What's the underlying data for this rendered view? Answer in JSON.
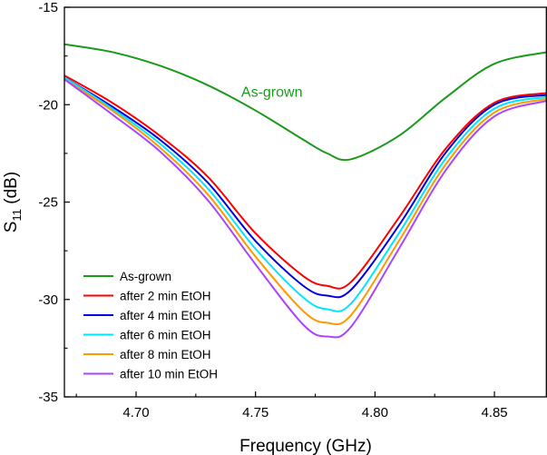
{
  "chart_data": {
    "type": "line",
    "title": "",
    "xlabel": "Frequency (GHz)",
    "ylabel_main": "S",
    "ylabel_sub": "11",
    "ylabel_unit": " (dB)",
    "xlim": [
      4.67,
      4.872
    ],
    "ylim": [
      -35,
      -15
    ],
    "xticks": [
      4.7,
      4.75,
      4.8,
      4.85
    ],
    "xtick_labels": [
      "4.70",
      "4.75",
      "4.80",
      "4.85"
    ],
    "yticks": [
      -35,
      -30,
      -25,
      -20,
      -15
    ],
    "ytick_labels": [
      "-35",
      "-30",
      "-25",
      "-20",
      "-15"
    ],
    "legend_position": "bottom-left",
    "annotation": {
      "text": "As-grown",
      "x": 4.744,
      "y": -19.6,
      "color": "#1a9a1a"
    },
    "x": [
      4.67,
      4.69,
      4.71,
      4.73,
      4.75,
      4.77,
      4.78,
      4.79,
      4.81,
      4.83,
      4.85,
      4.872
    ],
    "series": [
      {
        "name": "As-grown",
        "color": "#1a9a1a",
        "values": [
          -16.9,
          -17.3,
          -18.0,
          -19.0,
          -20.3,
          -21.8,
          -22.5,
          -22.8,
          -21.6,
          -19.6,
          -17.9,
          -17.3
        ]
      },
      {
        "name": "after 2 min EtOH",
        "color": "#ff0000",
        "values": [
          -18.5,
          -19.9,
          -21.6,
          -23.7,
          -26.6,
          -28.8,
          -29.3,
          -29.1,
          -25.8,
          -22.2,
          -19.9,
          -19.4
        ]
      },
      {
        "name": "after 4 min EtOH",
        "color": "#0000e0",
        "values": [
          -18.6,
          -20.1,
          -21.8,
          -24.0,
          -27.0,
          -29.3,
          -29.8,
          -29.5,
          -26.2,
          -22.4,
          -20.0,
          -19.5
        ]
      },
      {
        "name": "after 6 min EtOH",
        "color": "#00e6ff",
        "values": [
          -18.6,
          -20.2,
          -22.0,
          -24.3,
          -27.4,
          -29.9,
          -30.5,
          -30.2,
          -26.6,
          -22.7,
          -20.2,
          -19.6
        ]
      },
      {
        "name": "after 8 min EtOH",
        "color": "#ff9900",
        "values": [
          -18.7,
          -20.3,
          -22.2,
          -24.6,
          -27.8,
          -30.6,
          -31.2,
          -30.8,
          -27.0,
          -23.0,
          -20.4,
          -19.7
        ]
      },
      {
        "name": "after 10 min EtOH",
        "color": "#aa44ff",
        "values": [
          -18.7,
          -20.5,
          -22.4,
          -24.9,
          -28.2,
          -31.3,
          -31.9,
          -31.4,
          -27.4,
          -23.3,
          -20.6,
          -19.8
        ]
      }
    ]
  }
}
